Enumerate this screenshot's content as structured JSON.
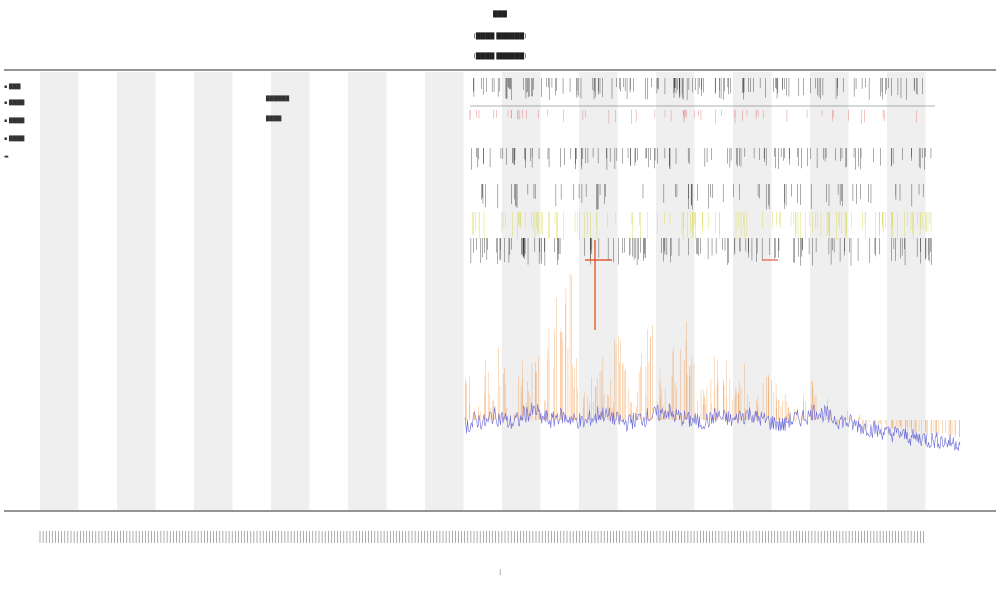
{
  "header": {
    "title_lines": [
      "███",
      "(████ ██████)",
      "(████ ██████)"
    ]
  },
  "legend": {
    "items": [
      {
        "label": "▪ ███",
        "color": "#333333"
      },
      {
        "label": "▪ ████",
        "color": "#999999"
      },
      {
        "label": "▪ ████",
        "color": "#c8c800"
      },
      {
        "label": "▪ ████",
        "color": "#e87a2a"
      },
      {
        "label": "▬",
        "color": "#222222"
      }
    ]
  },
  "annotation": {
    "lines": [
      "██████",
      "████"
    ]
  },
  "x_axis": {
    "label": "│"
  },
  "colors": {
    "band": "#efefef",
    "red_ticks": "#e06a6a",
    "black_ticks": "#222222",
    "yellow_ticks": "#d4d43a",
    "orange_spikes": "#f08a30",
    "blue_trace": "#6a6ad8",
    "highlight": "#e04010"
  },
  "chart_data": {
    "type": "line",
    "title": "",
    "xlabel": "",
    "ylabel": "",
    "x_start_fraction": 0.465,
    "series": [
      {
        "name": "",
        "color": "#6a6ad8",
        "values": [
          0.16,
          0.18,
          0.17,
          0.2,
          0.19,
          0.17,
          0.18,
          0.21,
          0.22,
          0.19,
          0.18,
          0.2,
          0.19,
          0.18,
          0.17,
          0.19,
          0.21,
          0.2,
          0.18,
          0.17,
          0.18,
          0.19,
          0.2,
          0.21,
          0.22,
          0.2,
          0.19,
          0.18,
          0.17,
          0.18,
          0.2,
          0.19,
          0.18,
          0.2,
          0.21,
          0.19,
          0.18,
          0.17,
          0.16,
          0.18,
          0.19,
          0.2,
          0.22,
          0.21,
          0.19,
          0.18,
          0.17,
          0.16,
          0.15,
          0.14,
          0.13,
          0.12,
          0.12,
          0.11,
          0.1,
          0.1,
          0.09,
          0.09,
          0.08,
          0.08
        ]
      }
    ],
    "spike_series": {
      "name": "",
      "color": "#f08a30",
      "values": [
        0.4,
        0.2,
        0.5,
        0.3,
        0.6,
        0.2,
        0.45,
        0.35,
        0.5,
        0.25,
        0.7,
        0.9,
        0.95,
        0.55,
        0.3,
        0.4,
        0.5,
        0.35,
        0.6,
        0.45,
        0.3,
        0.5,
        0.65,
        0.4,
        0.3,
        0.55,
        0.7,
        0.5,
        0.3,
        0.4,
        0.55,
        0.45,
        0.35,
        0.5,
        0.3,
        0.25,
        0.4,
        0.35,
        0.3,
        0.25,
        0.2,
        0.3,
        0.35,
        0.25,
        0.2,
        0.15,
        0.2,
        0.15,
        0.1,
        0.12,
        0.1,
        0.08,
        0.1,
        0.08,
        0.06,
        0.05,
        0.05,
        0.04,
        0.04,
        0.03
      ]
    },
    "grid": false,
    "legend_position": "top-left"
  }
}
